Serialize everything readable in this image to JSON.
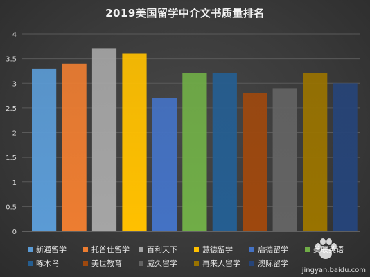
{
  "chart_data": {
    "type": "bar",
    "title": "2019美国留学中介文书质量排名",
    "xlabel": "",
    "ylabel": "",
    "ylim": [
      0,
      4
    ],
    "yticks": [
      "0",
      "0.5",
      "1",
      "1.5",
      "2",
      "2.5",
      "3",
      "3.5",
      "4"
    ],
    "grid": true,
    "legend_position": "bottom",
    "categories": [
      "新通留学",
      "托普仕留学",
      "百利天下",
      "慧德留学",
      "启德留学",
      "美联英语",
      "啄木鸟",
      "美世教育",
      "威久留学",
      "再来人留学",
      "澳际留学"
    ],
    "values": [
      3.3,
      3.4,
      3.7,
      3.6,
      2.7,
      3.2,
      3.2,
      2.8,
      2.9,
      3.2,
      3.0
    ],
    "colors": [
      "#5b9bd5",
      "#ed7d31",
      "#a5a5a5",
      "#ffc000",
      "#4472c4",
      "#70ad47",
      "#255e91",
      "#9e480e",
      "#636363",
      "#997300",
      "#264478"
    ]
  },
  "watermark": {
    "text": "jingyan.baidu.com"
  }
}
